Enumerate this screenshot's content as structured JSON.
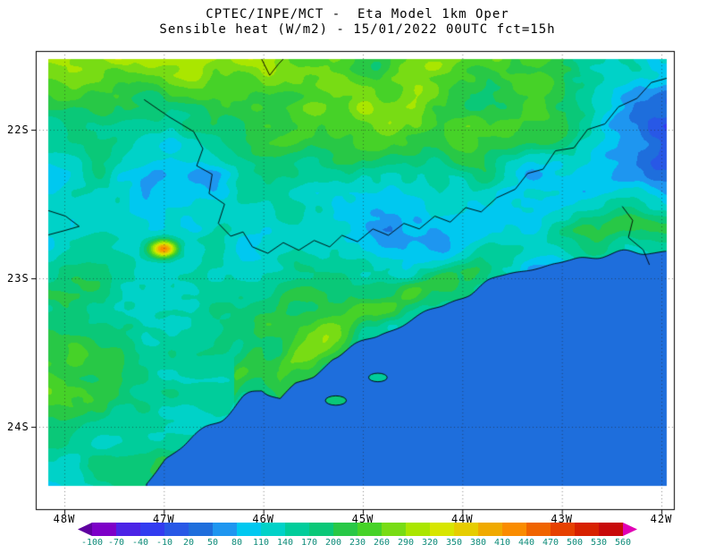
{
  "title": {
    "line1": "CPTEC/INPE/MCT -  Eta Model 1km Oper",
    "line2": "Sensible heat (W/m2) - 15/01/2022 00UTC fct=15h"
  },
  "axes": {
    "y_ticks": [
      "22S",
      "23S",
      "24S"
    ],
    "x_ticks": [
      "48W",
      "47W",
      "46W",
      "45W",
      "44W",
      "43W",
      "42W"
    ]
  },
  "colorbar": {
    "levels": [
      -100,
      -70,
      -40,
      -10,
      20,
      50,
      80,
      110,
      140,
      170,
      200,
      230,
      260,
      290,
      320,
      350,
      380,
      410,
      440,
      470,
      500,
      530,
      560
    ],
    "colors": [
      "#5f00a0",
      "#7d00c8",
      "#4b23e6",
      "#323cf0",
      "#2858e6",
      "#1e6edc",
      "#1e96f0",
      "#00c8f0",
      "#00d2c8",
      "#00cd9b",
      "#0ac878",
      "#28c846",
      "#46d228",
      "#78dc14",
      "#aae600",
      "#d7e600",
      "#e6cd00",
      "#f0aa00",
      "#fa8c00",
      "#f06400",
      "#e64100",
      "#d72100",
      "#c80a0a",
      "#e100b4"
    ],
    "label_color": "#0f8c7a"
  },
  "chart_data": {
    "type": "heatmap",
    "title": "CPTEC/INPE/MCT -  Eta Model 1km Oper",
    "subtitle": "Sensible heat (W/m2) - 15/01/2022 00UTC fct=15h",
    "center": "CPTEC/INPE/MCT",
    "model": "Eta Model 1km Oper",
    "variable": "Sensible heat",
    "units": "W/m2",
    "run": "15/01/2022 00UTC",
    "forecast": "fct=15h",
    "x": {
      "label": "longitude",
      "ticks": [
        "48W",
        "47W",
        "46W",
        "45W",
        "44W",
        "43W",
        "42W"
      ],
      "range_deg_w": [
        48.3,
        41.9
      ]
    },
    "y": {
      "label": "latitude",
      "ticks": [
        "22S",
        "23S",
        "24S"
      ],
      "range_deg_s": [
        21.5,
        24.6
      ]
    },
    "levels_w_m2": [
      -100,
      -70,
      -40,
      -10,
      20,
      50,
      80,
      110,
      140,
      170,
      200,
      230,
      260,
      290,
      320,
      350,
      380,
      410,
      440,
      470,
      500,
      530,
      560
    ],
    "palette": [
      "#5f00a0",
      "#7d00c8",
      "#4b23e6",
      "#323cf0",
      "#2858e6",
      "#1e6edc",
      "#1e96f0",
      "#00c8f0",
      "#00d2c8",
      "#00cd9b",
      "#0ac878",
      "#28c846",
      "#46d228",
      "#78dc14",
      "#aae600",
      "#d7e600",
      "#e6cd00",
      "#f0aa00",
      "#fa8c00",
      "#f06400",
      "#e64100",
      "#d72100",
      "#c80a0a",
      "#e100b4"
    ],
    "grid": "dotted, 1 degree spacing",
    "legend_position": "bottom horizontal colorbar with arrow ends",
    "field_summary": {
      "ocean_southeast": "uniform ~20-40 W/m2 (medium blue)",
      "land_typical": "~80-260 W/m2 (cyan to green mottled field)",
      "northern_band": "~260-350 W/m2 (green / yellow patches along top of domain)",
      "eastern_interior": "~50-140 W/m2 (blue-cyan, lower values toward right edge above coast)",
      "local_maximum": "~440 W/m2 orange spot near 47.2W 23.0S",
      "overlays": "state boundary polylines and coastline in black"
    }
  }
}
